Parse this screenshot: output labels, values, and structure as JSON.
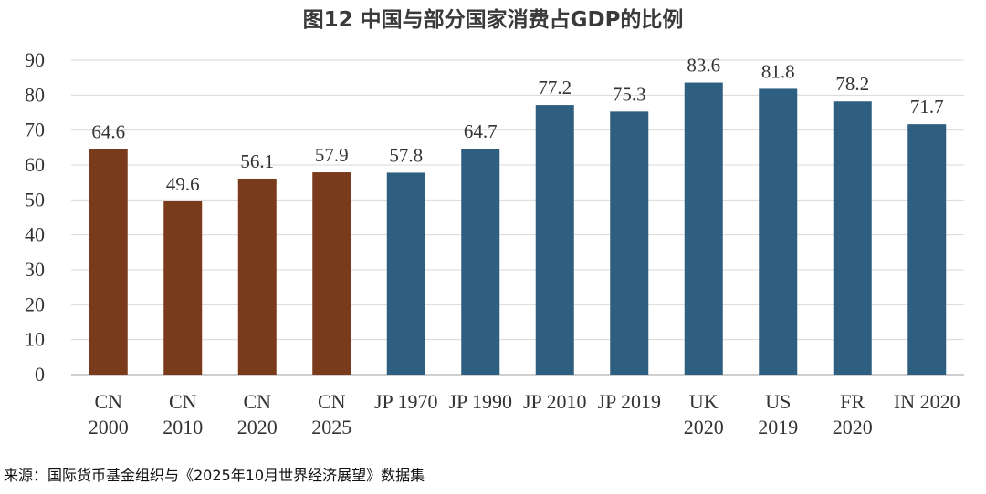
{
  "chart_data": {
    "type": "bar",
    "title": "图12  中国与部分国家消费占GDP的比例",
    "categories": [
      [
        "CN",
        "2000"
      ],
      [
        "CN",
        "2010"
      ],
      [
        "CN",
        "2020"
      ],
      [
        "CN",
        "2025"
      ],
      [
        "JP 1970"
      ],
      [
        "JP 1990"
      ],
      [
        "JP 2010"
      ],
      [
        "JP 2019"
      ],
      [
        "UK",
        "2020"
      ],
      [
        "US",
        "2019"
      ],
      [
        "FR",
        "2020"
      ],
      [
        "IN 2020"
      ]
    ],
    "values": [
      64.6,
      49.6,
      56.1,
      57.9,
      57.8,
      64.7,
      77.2,
      75.3,
      83.6,
      81.8,
      78.2,
      71.7
    ],
    "value_labels": [
      "64.6",
      "49.6",
      "56.1",
      "57.9",
      "57.8",
      "64.7",
      "77.2",
      "75.3",
      "83.6",
      "81.8",
      "78.2",
      "71.7"
    ],
    "groups": [
      "china",
      "china",
      "china",
      "china",
      "other",
      "other",
      "other",
      "other",
      "other",
      "other",
      "other",
      "other"
    ],
    "colors": {
      "china": "#7a3a1c",
      "other": "#2e5f80",
      "grid": "#d9d9d9",
      "axis": "#bfbfbf"
    },
    "ylim": [
      0,
      90
    ],
    "yticks": [
      "0",
      "10",
      "20",
      "30",
      "40",
      "50",
      "60",
      "70",
      "80",
      "90"
    ],
    "grid": true,
    "xlabel": "",
    "ylabel": ""
  },
  "source": "来源：国际货币基金组织与《2025年10月世界经济展望》数据集"
}
